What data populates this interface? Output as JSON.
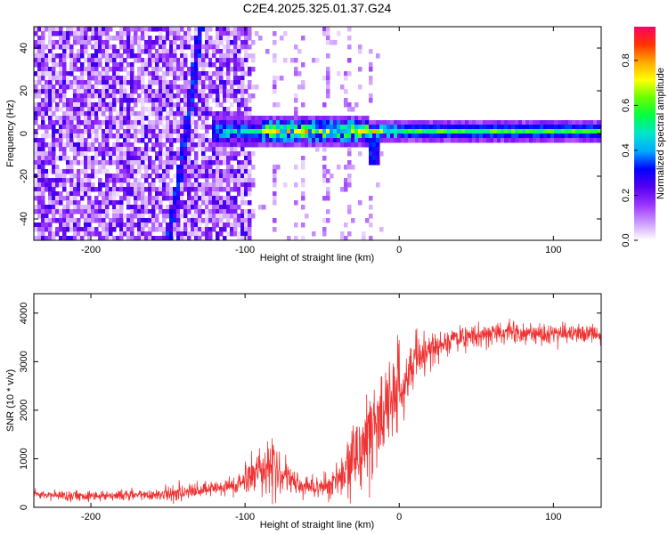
{
  "title": "C2E4.2025.325.01.37.G24",
  "chart_data": [
    {
      "type": "heatmap",
      "name": "spectrogram",
      "xlabel": "Height of straight line (km)",
      "ylabel": "Frequency (Hz)",
      "xlim": [
        -237,
        131
      ],
      "ylim": [
        -50,
        50
      ],
      "xticks": [
        -200,
        -100,
        0,
        100
      ],
      "yticks": [
        40,
        20,
        0,
        -20,
        -40
      ],
      "xtick_labels": [
        "-200",
        "-100",
        "0",
        "100"
      ],
      "ytick_labels": [
        "40",
        "20",
        "0",
        "-20",
        "-40"
      ],
      "colorbar": {
        "label": "Normalized spectral amplitude",
        "range": [
          0,
          0.95
        ],
        "ticks": [
          0,
          0.2,
          0.4,
          0.6,
          0.8
        ],
        "tick_labels": [
          "0.0",
          "0.2",
          "0.4",
          "0.6",
          "0.8"
        ],
        "colormap": [
          "#ffffff",
          "#cc99ff",
          "#9933ff",
          "#5500ee",
          "#0000ff",
          "#00aaff",
          "#00e5cc",
          "#00ff44",
          "#66ff00",
          "#ffff00",
          "#ffaa00",
          "#ff3300",
          "#ff0066"
        ]
      },
      "features": {
        "noise_region_km": [
          -237,
          -95
        ],
        "sparse_noise_km": [
          -95,
          -10
        ],
        "carrier_start_km": -122,
        "carrier_freq_hz": 1,
        "diagonal_streak_km": [
          [
            -129,
            50
          ],
          [
            -140,
            -10
          ],
          [
            -150,
            -50
          ]
        ]
      }
    },
    {
      "type": "line",
      "name": "snr",
      "color": "#f03232",
      "xlabel": "Height of straight line (km)",
      "ylabel": "SNR (10 * v/v)",
      "xlim": [
        -237,
        131
      ],
      "ylim": [
        0,
        4400
      ],
      "xticks": [
        -200,
        -100,
        0,
        100
      ],
      "yticks": [
        0,
        1000,
        2000,
        3000,
        4000
      ],
      "xtick_labels": [
        "-200",
        "-100",
        "0",
        "100"
      ],
      "ytick_labels": [
        "0",
        "1000",
        "2000",
        "3000",
        "4000"
      ],
      "envelope": {
        "x": [
          -237,
          -200,
          -160,
          -130,
          -105,
          -95,
          -85,
          -75,
          -65,
          -55,
          -45,
          -35,
          -25,
          -15,
          -5,
          5,
          15,
          25,
          35,
          50,
          70,
          100,
          131
        ],
        "mean": [
          250,
          240,
          260,
          330,
          450,
          700,
          900,
          620,
          450,
          420,
          460,
          650,
          1250,
          1700,
          2200,
          2800,
          3150,
          3350,
          3450,
          3550,
          3600,
          3580,
          3560
        ],
        "noise": [
          90,
          90,
          110,
          140,
          200,
          350,
          500,
          300,
          220,
          220,
          250,
          450,
          800,
          900,
          900,
          700,
          400,
          260,
          220,
          200,
          180,
          180,
          180
        ]
      }
    }
  ]
}
